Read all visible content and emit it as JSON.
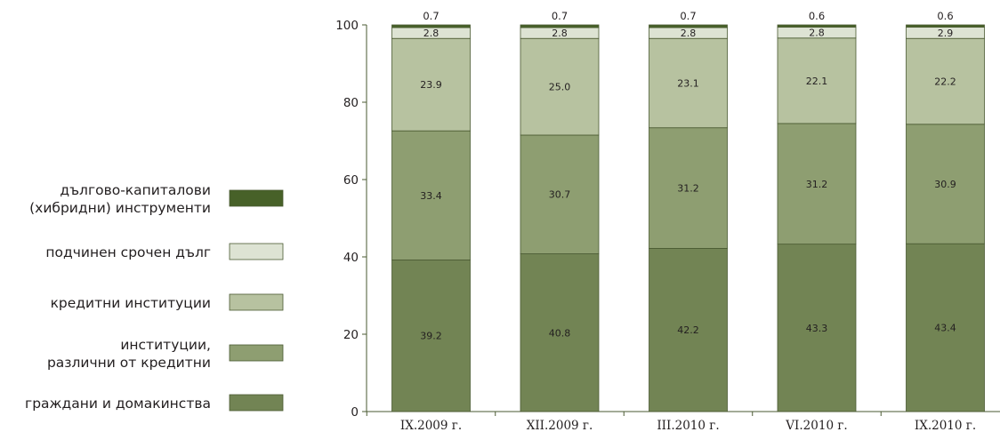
{
  "chart_data": {
    "type": "bar",
    "stacked": true,
    "title": "",
    "xlabel": "",
    "ylabel": "",
    "ylim": [
      0,
      100
    ],
    "yticks": [
      0,
      20,
      40,
      60,
      80,
      100
    ],
    "grid": false,
    "legend_position": "left",
    "categories": [
      "IX.2009 г.",
      "XII.2009 г.",
      "III.2010 г.",
      "VI.2010 г.",
      "IX.2010 г."
    ],
    "series": [
      {
        "name": "граждани и домакинства",
        "color": "#728454",
        "values": [
          39.2,
          40.8,
          42.2,
          43.3,
          43.4
        ]
      },
      {
        "name": "институции, различни от кредитни",
        "color": "#8e9e71",
        "values": [
          33.4,
          30.7,
          31.2,
          31.2,
          30.9
        ]
      },
      {
        "name": "кредитни институции",
        "color": "#b7c2a0",
        "values": [
          23.9,
          25.0,
          23.1,
          22.1,
          22.2
        ]
      },
      {
        "name": "подчинен срочен дълг",
        "color": "#dde3d3",
        "values": [
          2.8,
          2.8,
          2.8,
          2.8,
          2.9
        ]
      },
      {
        "name": "дългово-капиталови (хибридни) инструменти",
        "color": "#476128",
        "values": [
          0.7,
          0.7,
          0.7,
          0.6,
          0.6
        ]
      }
    ],
    "data_labels": [
      [
        "39.2",
        "40.8",
        "42.2",
        "43.3",
        "43.4"
      ],
      [
        "33.4",
        "30.7",
        "31.2",
        "31.2",
        "30.9"
      ],
      [
        "23.9",
        "25.0",
        "23.1",
        "22.1",
        "22.2"
      ],
      [
        "2.8",
        "2.8",
        "2.8",
        "2.8",
        "2.9"
      ],
      [
        "0.7",
        "0.7",
        "0.7",
        "0.6",
        "0.6"
      ]
    ]
  },
  "legend": {
    "items": [
      {
        "series": 4,
        "lines": [
          "дългово-капиталови",
          "(хибридни) инструменти"
        ]
      },
      {
        "series": 3,
        "lines": [
          "подчинен срочен дълг"
        ]
      },
      {
        "series": 2,
        "lines": [
          "кредитни институции"
        ]
      },
      {
        "series": 1,
        "lines": [
          "институции,",
          "различни от кредитни"
        ]
      },
      {
        "series": 0,
        "lines": [
          "граждани и домакинства"
        ]
      }
    ]
  }
}
